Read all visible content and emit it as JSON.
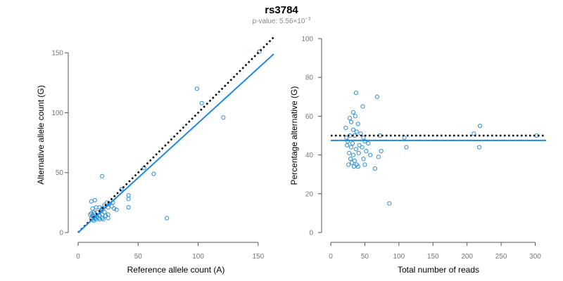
{
  "title": "rs3784",
  "subtitle": {
    "prefix": "p-value: 5.56×10",
    "exponent": "−3"
  },
  "colors": {
    "points": "#2b8fd6",
    "fit_line": "#1e88e5",
    "reference_line": "#000000",
    "axis": "#555555",
    "tick_text": "#777777"
  },
  "chart_data": [
    {
      "type": "scatter",
      "name": "left",
      "xlabel": "Reference allele count (A)",
      "ylabel": "Alternative allele count (G)",
      "xlim": [
        0,
        163
      ],
      "ylim": [
        0,
        163
      ],
      "xticks": [
        0,
        50,
        100,
        150
      ],
      "yticks": [
        0,
        50,
        100,
        150
      ],
      "reference_line": {
        "style": "dotted",
        "x": [
          0,
          163
        ],
        "y": [
          0,
          163
        ]
      },
      "fit_line": {
        "style": "solid",
        "x": [
          0,
          163
        ],
        "y": [
          0,
          149
        ]
      },
      "points": [
        [
          151,
          151
        ],
        [
          99,
          120
        ],
        [
          103,
          108
        ],
        [
          121,
          96
        ],
        [
          63,
          49
        ],
        [
          74,
          12
        ],
        [
          55,
          54
        ],
        [
          42,
          31
        ],
        [
          42,
          28
        ],
        [
          42,
          21
        ],
        [
          36,
          36
        ],
        [
          20,
          47
        ],
        [
          11,
          26
        ],
        [
          14,
          27
        ],
        [
          24,
          25
        ],
        [
          29,
          25
        ],
        [
          26,
          24
        ],
        [
          22,
          23
        ],
        [
          28,
          22
        ],
        [
          25,
          21
        ],
        [
          20,
          20
        ],
        [
          12,
          20
        ],
        [
          15,
          21
        ],
        [
          18,
          21
        ],
        [
          30,
          20
        ],
        [
          32,
          19
        ],
        [
          19,
          18
        ],
        [
          13,
          17
        ],
        [
          16,
          17
        ],
        [
          22,
          17
        ],
        [
          11,
          16
        ],
        [
          14,
          16
        ],
        [
          20,
          15
        ],
        [
          25,
          15
        ],
        [
          10,
          15
        ],
        [
          12,
          14
        ],
        [
          18,
          14
        ],
        [
          23,
          14
        ],
        [
          13,
          13
        ],
        [
          16,
          13
        ],
        [
          20,
          12
        ],
        [
          25,
          12
        ],
        [
          11,
          12
        ],
        [
          14,
          12
        ],
        [
          17,
          12
        ],
        [
          21,
          11
        ],
        [
          12,
          11
        ],
        [
          15,
          11
        ],
        [
          18,
          11
        ],
        [
          13,
          10
        ]
      ]
    },
    {
      "type": "scatter",
      "name": "right",
      "xlabel": "Total number of reads",
      "ylabel": "Percentage alternative (G)",
      "xlim": [
        0,
        316
      ],
      "ylim": [
        0,
        100
      ],
      "xticks": [
        0,
        50,
        100,
        150,
        200,
        250,
        300
      ],
      "yticks": [
        0,
        20,
        40,
        60,
        80,
        100
      ],
      "reference_line": {
        "style": "dotted",
        "x": [
          0,
          316
        ],
        "y": [
          50,
          50
        ]
      },
      "fit_line": {
        "style": "solid",
        "x": [
          0,
          316
        ],
        "y": [
          47.5,
          47.5
        ]
      },
      "points": [
        [
          302,
          50
        ],
        [
          219,
          55
        ],
        [
          210,
          51
        ],
        [
          218,
          44
        ],
        [
          111,
          44
        ],
        [
          108,
          49
        ],
        [
          86,
          15
        ],
        [
          74,
          42
        ],
        [
          72,
          50
        ],
        [
          68,
          70
        ],
        [
          70,
          39
        ],
        [
          65,
          33
        ],
        [
          37,
          72
        ],
        [
          47,
          65
        ],
        [
          33,
          62
        ],
        [
          28,
          59
        ],
        [
          36,
          60
        ],
        [
          30,
          57
        ],
        [
          40,
          56
        ],
        [
          22,
          54
        ],
        [
          33,
          53
        ],
        [
          38,
          52
        ],
        [
          44,
          51
        ],
        [
          23,
          49
        ],
        [
          28,
          50
        ],
        [
          35,
          50
        ],
        [
          48,
          49
        ],
        [
          25,
          47
        ],
        [
          32,
          46
        ],
        [
          42,
          45
        ],
        [
          50,
          47
        ],
        [
          55,
          46
        ],
        [
          24,
          45
        ],
        [
          30,
          44
        ],
        [
          37,
          43
        ],
        [
          46,
          44
        ],
        [
          52,
          42
        ],
        [
          27,
          41
        ],
        [
          33,
          40
        ],
        [
          41,
          41
        ],
        [
          58,
          40
        ],
        [
          29,
          38
        ],
        [
          35,
          37
        ],
        [
          48,
          38
        ],
        [
          31,
          36
        ],
        [
          38,
          35
        ],
        [
          26,
          35
        ],
        [
          34,
          34
        ],
        [
          40,
          34
        ],
        [
          50,
          35
        ]
      ]
    }
  ]
}
